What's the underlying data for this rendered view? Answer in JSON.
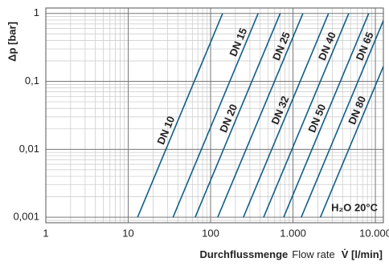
{
  "chart_data": {
    "type": "line",
    "y_label": "Δp [bar]",
    "x_label_parts": [
      "Durchflussmenge",
      "Flow rate",
      "V̇ [l/min]"
    ],
    "annotation": "H₂O 20°C",
    "log_x": true,
    "log_y": true,
    "grid": true,
    "minor_grid": true,
    "xlim": [
      1,
      12500
    ],
    "ylim": [
      0.00083,
      1.2
    ],
    "xticks": [
      1,
      10,
      100,
      {
        "value": 1000,
        "label": "1.000"
      },
      {
        "value": 10000,
        "label": "10.000"
      }
    ],
    "yticks": [
      {
        "value": 0.001,
        "label": "0,001"
      },
      {
        "value": 0.01,
        "label": "0,01"
      },
      {
        "value": 0.1,
        "label": "0,1"
      },
      1
    ],
    "series": [
      {
        "name": "DN 10",
        "color": "#0f5f88",
        "x": [
          13,
          140
        ],
        "values": [
          0.001,
          1
        ]
      },
      {
        "name": "DN 15",
        "color": "#0f5f88",
        "x": [
          35,
          378
        ],
        "values": [
          0.001,
          1
        ]
      },
      {
        "name": "DN 20",
        "color": "#0f5f88",
        "x": [
          65,
          700
        ],
        "values": [
          0.001,
          1
        ]
      },
      {
        "name": "DN 25",
        "color": "#0f5f88",
        "x": [
          122,
          1320
        ],
        "values": [
          0.001,
          1
        ]
      },
      {
        "name": "DN 32",
        "color": "#0f5f88",
        "x": [
          250,
          2700
        ],
        "values": [
          0.001,
          1
        ]
      },
      {
        "name": "DN 40",
        "color": "#0f5f88",
        "x": [
          440,
          4750
        ],
        "values": [
          0.001,
          1
        ]
      },
      {
        "name": "DN 50",
        "color": "#0f5f88",
        "x": [
          770,
          8300
        ],
        "values": [
          0.001,
          1
        ]
      },
      {
        "name": "DN 65",
        "color": "#0f5f88",
        "x": [
          1260,
          13600
        ],
        "values": [
          0.001,
          1
        ]
      },
      {
        "name": "DN 80",
        "color": "#0f5f88",
        "x": [
          2150,
          23200
        ],
        "values": [
          0.001,
          1
        ]
      }
    ]
  }
}
